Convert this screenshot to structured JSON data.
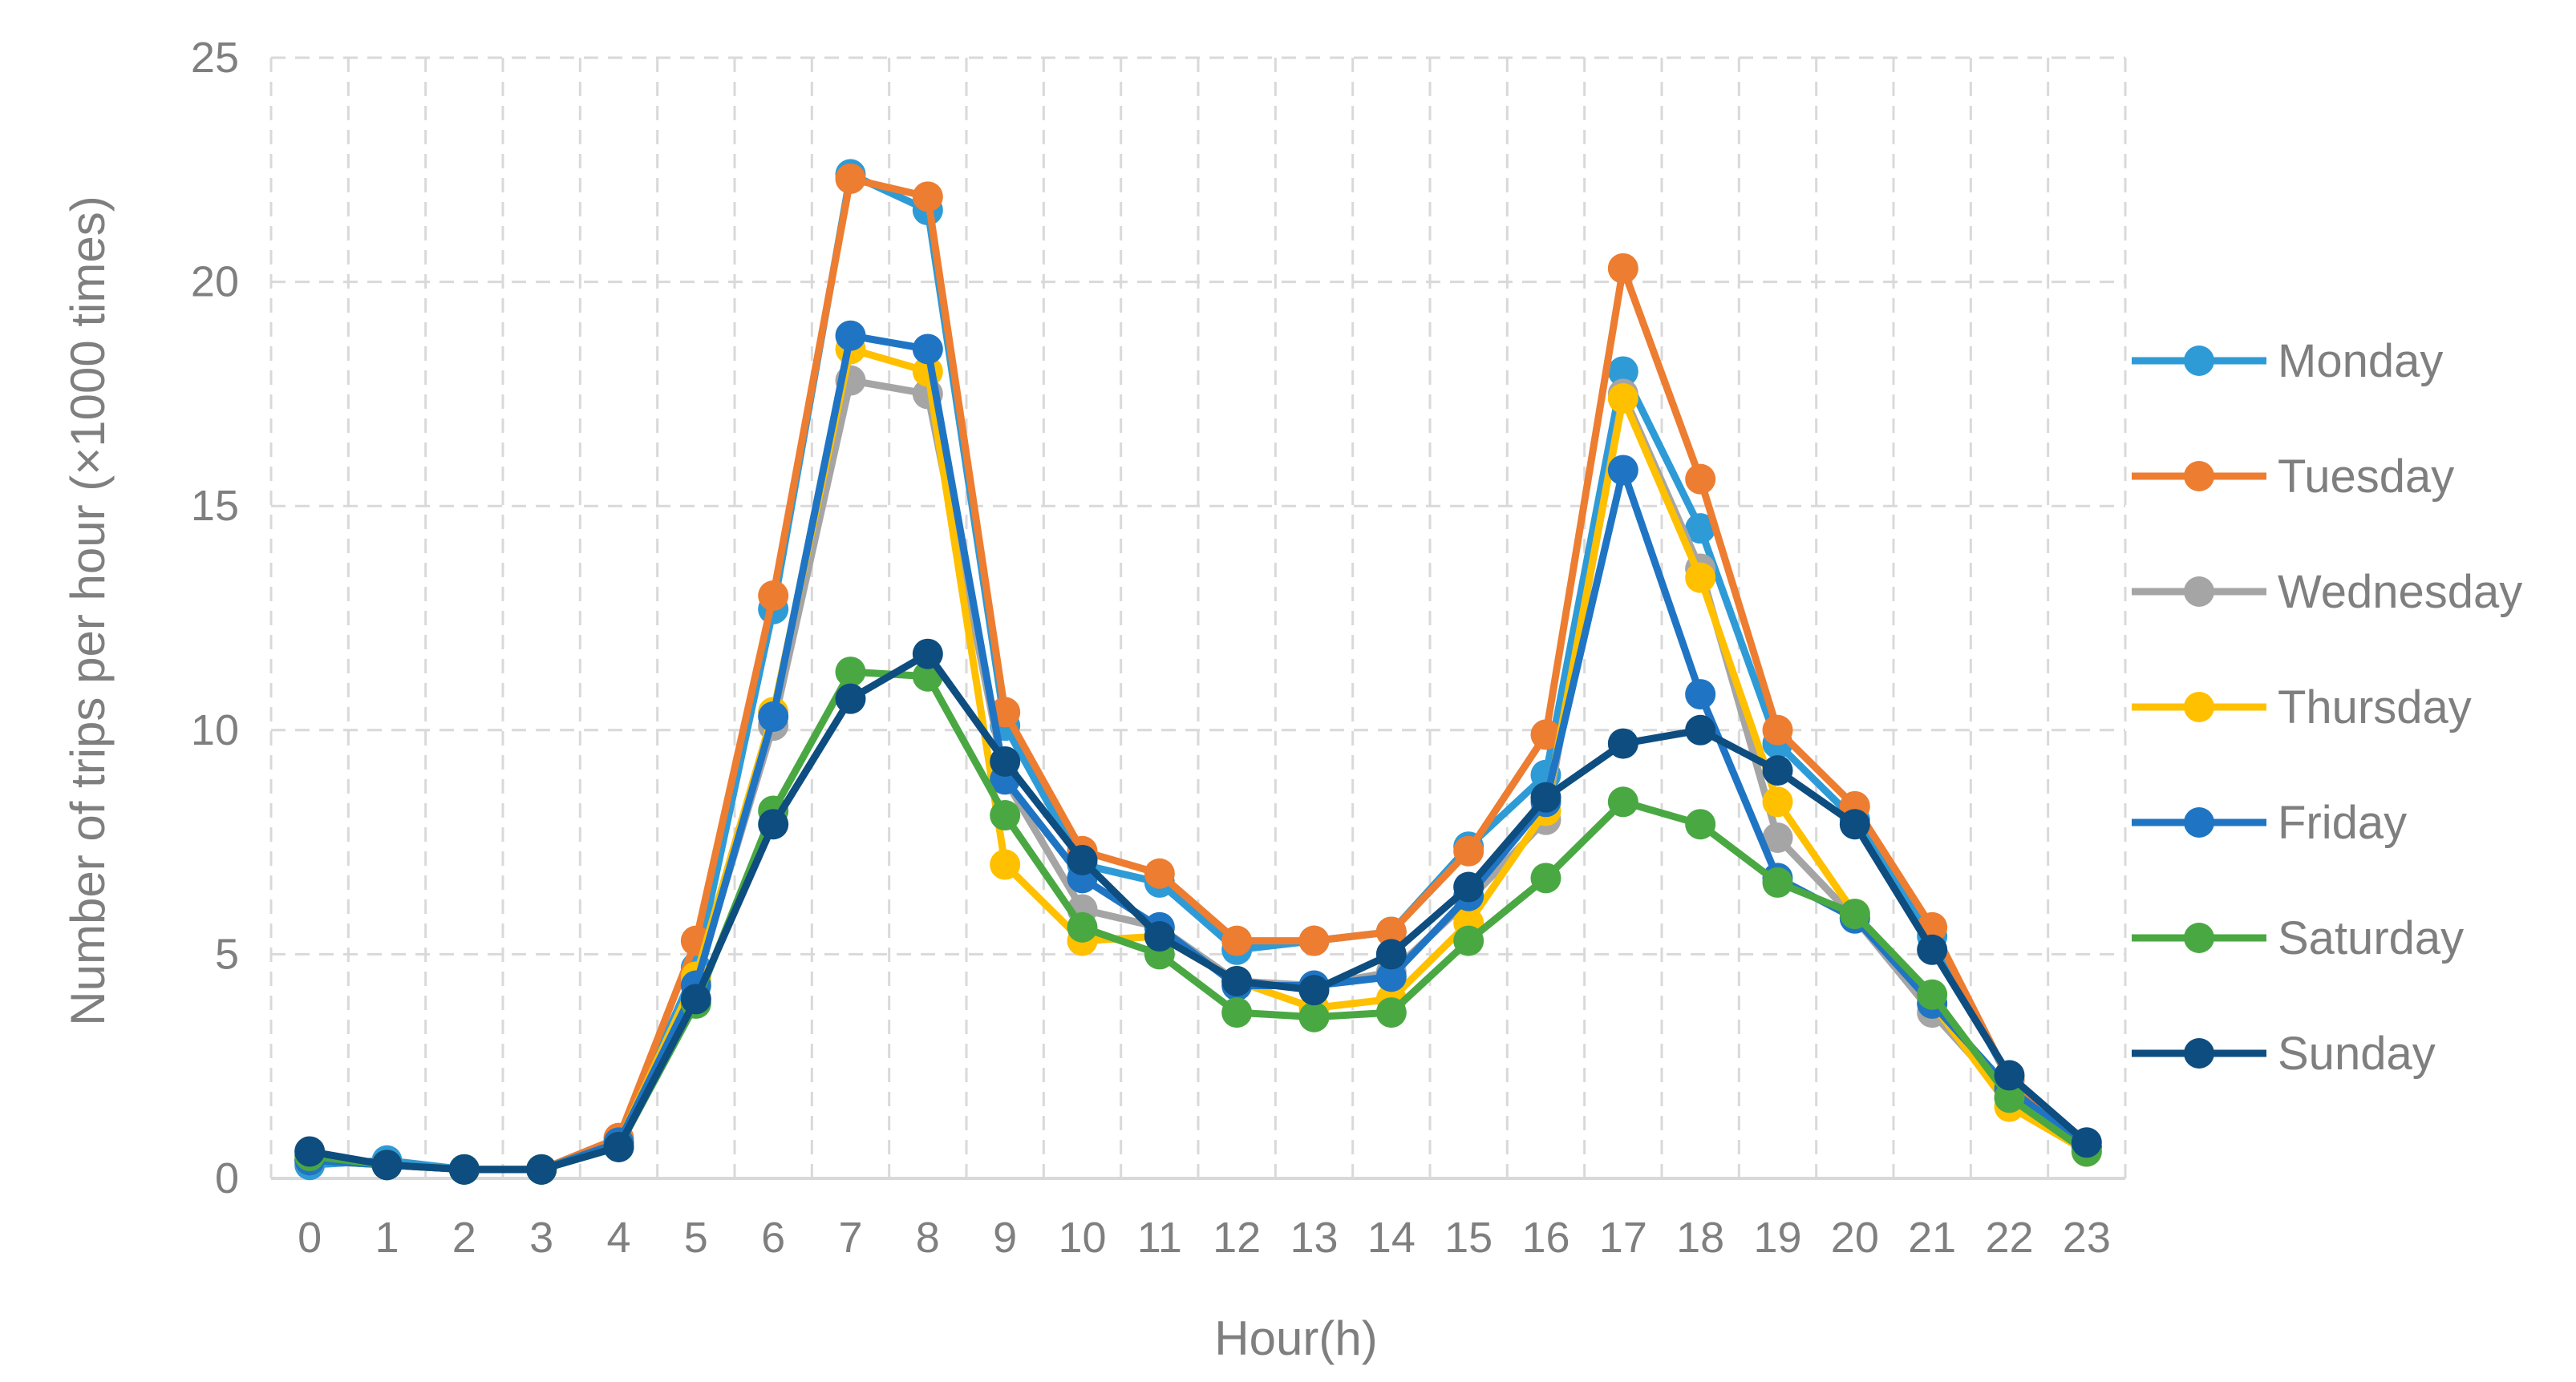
{
  "chart_data": {
    "type": "line",
    "title": "",
    "xlabel": "Hour(h)",
    "ylabel": "Number of trips per hour (×1000 times)",
    "x": [
      0,
      1,
      2,
      3,
      4,
      5,
      6,
      7,
      8,
      9,
      10,
      11,
      12,
      13,
      14,
      15,
      16,
      17,
      18,
      19,
      20,
      21,
      22,
      23
    ],
    "xticks": [
      "0",
      "1",
      "2",
      "3",
      "4",
      "5",
      "6",
      "7",
      "8",
      "9",
      "10",
      "11",
      "12",
      "13",
      "14",
      "15",
      "16",
      "17",
      "18",
      "19",
      "20",
      "21",
      "22",
      "23"
    ],
    "ylim": [
      0,
      25
    ],
    "yticks": [
      "0",
      "5",
      "10",
      "15",
      "20",
      "25"
    ],
    "grid": true,
    "legend_position": "right",
    "series": [
      {
        "name": "Monday",
        "color": "#2e9bd6",
        "values": [
          0.3,
          0.4,
          0.2,
          0.2,
          0.8,
          4.7,
          12.7,
          22.4,
          21.6,
          10.1,
          7.0,
          6.6,
          5.1,
          5.3,
          5.5,
          7.4,
          9.0,
          18.0,
          14.5,
          9.7,
          8.0,
          5.4,
          2.2,
          0.7
        ]
      },
      {
        "name": "Tuesday",
        "color": "#ed7d31",
        "values": [
          0.4,
          0.3,
          0.2,
          0.2,
          0.9,
          5.3,
          13.0,
          22.3,
          21.9,
          10.4,
          7.3,
          6.8,
          5.3,
          5.3,
          5.5,
          7.3,
          9.9,
          20.3,
          15.6,
          10.0,
          8.3,
          5.6,
          2.2,
          0.7
        ]
      },
      {
        "name": "Wednesday",
        "color": "#a5a5a5",
        "values": [
          0.4,
          0.3,
          0.2,
          0.2,
          0.7,
          4.4,
          10.1,
          17.8,
          17.5,
          8.9,
          6.0,
          5.6,
          4.4,
          4.3,
          4.6,
          6.2,
          8.0,
          17.5,
          13.6,
          7.6,
          5.8,
          3.7,
          1.8,
          0.6
        ]
      },
      {
        "name": "Thursday",
        "color": "#ffc000",
        "values": [
          0.4,
          0.3,
          0.2,
          0.2,
          0.8,
          4.5,
          10.4,
          18.5,
          18.0,
          7.0,
          5.3,
          5.4,
          4.4,
          3.8,
          4.0,
          5.7,
          8.2,
          17.4,
          13.4,
          8.4,
          5.9,
          3.9,
          1.6,
          0.6
        ]
      },
      {
        "name": "Friday",
        "color": "#1f75c4",
        "values": [
          0.4,
          0.3,
          0.2,
          0.2,
          0.8,
          4.3,
          10.3,
          18.8,
          18.5,
          8.9,
          6.7,
          5.6,
          4.3,
          4.3,
          4.5,
          6.3,
          8.4,
          15.8,
          10.8,
          6.7,
          5.8,
          3.9,
          2.0,
          0.7
        ]
      },
      {
        "name": "Saturday",
        "color": "#4aa843",
        "values": [
          0.5,
          0.3,
          0.2,
          0.2,
          0.7,
          3.9,
          8.2,
          11.3,
          11.2,
          8.1,
          5.6,
          5.0,
          3.7,
          3.6,
          3.7,
          5.3,
          6.7,
          8.4,
          7.9,
          6.6,
          5.9,
          4.1,
          1.8,
          0.6
        ]
      },
      {
        "name": "Sunday",
        "color": "#0e4d80",
        "values": [
          0.6,
          0.3,
          0.2,
          0.2,
          0.7,
          4.0,
          7.9,
          10.7,
          11.7,
          9.3,
          7.1,
          5.4,
          4.4,
          4.2,
          5.0,
          6.5,
          8.5,
          9.7,
          10.0,
          9.1,
          7.9,
          5.1,
          2.3,
          0.8
        ]
      }
    ]
  }
}
